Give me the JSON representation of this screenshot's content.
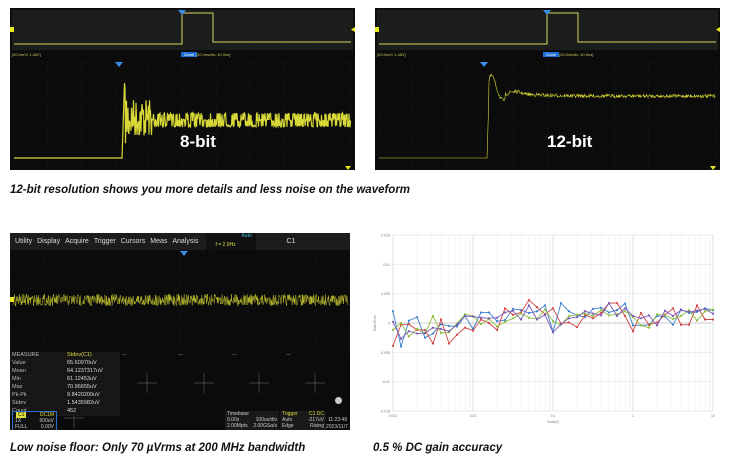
{
  "panels": {
    "eight_bit": {
      "label": "8-bit",
      "ch_label": "[20.0mV/ 1.48V]",
      "zoom_tag": "Zoom",
      "timebase_label": "[20.0ns/div, 40.0ns]"
    },
    "twelve_bit": {
      "label": "12-bit",
      "ch_label": "[20.0mV/ 1.48V]",
      "zoom_tag": "Zoom",
      "timebase_label": "[20.0ns/div, 40.0ns]"
    }
  },
  "captions": {
    "top": "12-bit resolution shows you more details and less noise on the waveform",
    "bottom_left": "Low noise floor: Only 70 µVrms at 200 MHz bandwidth",
    "bottom_right": "0.5 % DC gain accuracy"
  },
  "scope": {
    "menu": [
      "Utility",
      "Display",
      "Acquire",
      "Trigger",
      "Cursors",
      "Meas",
      "Analysis"
    ],
    "trigger_mode": "Auto",
    "freq": "f = 2.0Hz",
    "channel": "C1",
    "measure": {
      "header": [
        "MEASURE",
        "Stdev(C1)"
      ],
      "rows": [
        [
          "Value",
          "65.60970uV"
        ],
        [
          "Mean",
          "64.1237317uV"
        ],
        [
          "Min",
          "61.12453uV"
        ],
        [
          "Max",
          "70.96655uV"
        ],
        [
          "Pk-Pk",
          "9.8420200uV"
        ],
        [
          "Stdev",
          "1.5435982uV"
        ],
        [
          "Count",
          "452"
        ]
      ],
      "slots": [
        "---",
        "---",
        "---",
        "---"
      ]
    },
    "ch_box": {
      "name": "C1",
      "coupling": "DC1M",
      "probe": "1X",
      "scale": "500uV",
      "bw": "FULL",
      "offset": "0.00V"
    },
    "timebase": {
      "title": "Timebase",
      "delay": "0.00s",
      "scale": "100us/div",
      "points": "2.00Mpts",
      "rate": "2.00GSa/s"
    },
    "trigger": {
      "title": "Trigger",
      "source": "C1 DC",
      "mode": "Auto",
      "level": "-217uV",
      "type": "Edge",
      "slope": "Rising"
    },
    "clock": {
      "time": "11:23:49",
      "date": "2023/11/7"
    }
  },
  "chart_data": {
    "type": "line",
    "xscale": "log",
    "xlim": [
      0.001,
      10
    ],
    "ylim": [
      -0.015,
      0.015
    ],
    "xlabel": "Volts(V)",
    "ylabel": "Gain Error",
    "xticks": [
      "0.001",
      "0.01",
      "0.1",
      "1",
      "10"
    ],
    "yticks": [
      "0.015",
      "0.01",
      "0.005",
      "0",
      "-0.005",
      "-0.01",
      "-0.015"
    ],
    "grid": true,
    "x": [
      0.001,
      0.00126,
      0.00158,
      0.002,
      0.00251,
      0.00316,
      0.00398,
      0.00501,
      0.00631,
      0.00794,
      0.01,
      0.0126,
      0.0158,
      0.02,
      0.0251,
      0.0316,
      0.0398,
      0.0501,
      0.0631,
      0.0794,
      0.1,
      0.126,
      0.158,
      0.2,
      0.251,
      0.316,
      0.398,
      0.501,
      0.631,
      0.794,
      1,
      1.26,
      1.58,
      2,
      2.51,
      3.16,
      3.98,
      5.01,
      6.31,
      7.94,
      10
    ],
    "series": [
      {
        "color": "#3d7fd0",
        "values": [
          0.002,
          -0.004,
          0.0004,
          0.001,
          -0.0025,
          -0.0018,
          -0.0002,
          -0.0005,
          -0.0006,
          0.0012,
          -0.001,
          0.0018,
          0.0018,
          0.0003,
          0.0005,
          0.0024,
          0.0022,
          0.0017,
          0.002,
          0.003,
          -0.0015,
          0.0034,
          0.002,
          0.0013,
          0.001,
          0.0024,
          0.0026,
          0.0018,
          0.0022,
          0.0033,
          -0.0004,
          -0.0004,
          -0.0003,
          0.0012,
          0.0011,
          -0.0003,
          0.0023,
          0.0017,
          0.0019,
          0.0025,
          0.0022
        ]
      },
      {
        "color": "#d04343",
        "values": [
          -0.0039,
          -0.0003,
          -0.0002,
          -0.0012,
          -0.0012,
          -0.0035,
          0.0006,
          -0.0035,
          -0.002,
          -0.0008,
          -0.0013,
          0.0006,
          0,
          -0.0012,
          0.0025,
          0.0014,
          0.0018,
          0.0039,
          0.0027,
          0.0015,
          0.0025,
          -0.0001,
          0.0001,
          -0.0007,
          0.0014,
          0.0008,
          0.0017,
          0.0034,
          0.0034,
          0.0012,
          -0.0014,
          0.0017,
          -0.0003,
          0.0001,
          0.0014,
          0.0025,
          -0.0003,
          -0.0003,
          0.003,
          0.0006,
          0.0006
        ]
      },
      {
        "color": "#8cbf3f",
        "values": [
          -0.0012,
          0,
          -0.0023,
          -0.001,
          -0.0018,
          0.0012,
          -0.0017,
          -0.0016,
          -0.0001,
          0.0015,
          0.0012,
          -0.0002,
          0.0007,
          -0.0006,
          0.0002,
          0.0008,
          0.0016,
          0.0009,
          0.0007,
          0.0023,
          0.0003,
          -0.0003,
          0.0012,
          0.0014,
          0.0016,
          0.0012,
          0.0022,
          0.0013,
          0.0015,
          0.002,
          0.001,
          -0.0004,
          -0.0008,
          0.0015,
          0.0013,
          0.0007,
          0.0012,
          0.0022,
          0.0004,
          0.002,
          0.0023
        ]
      },
      {
        "color": "#7a5ab5",
        "values": [
          0.0002,
          -0.0027,
          -0.0014,
          -0.0018,
          -0.0017,
          -0.0008,
          -0.001,
          -0.0014,
          -0.0003,
          0.0012,
          0.0011,
          0.0009,
          0.0008,
          0.0009,
          0.0018,
          0.0021,
          0.0006,
          0.003,
          0.0006,
          0.0014,
          -0.0016,
          -0.0002,
          0.0008,
          0.001,
          0.002,
          0.0016,
          0.0013,
          0.0034,
          0.0012,
          0.0025,
          0.0012,
          0.0008,
          0.0013,
          -0.0004,
          0.0021,
          0.0012,
          0.0022,
          0.0019,
          0.0021,
          0.0024,
          0.0016
        ]
      }
    ]
  }
}
